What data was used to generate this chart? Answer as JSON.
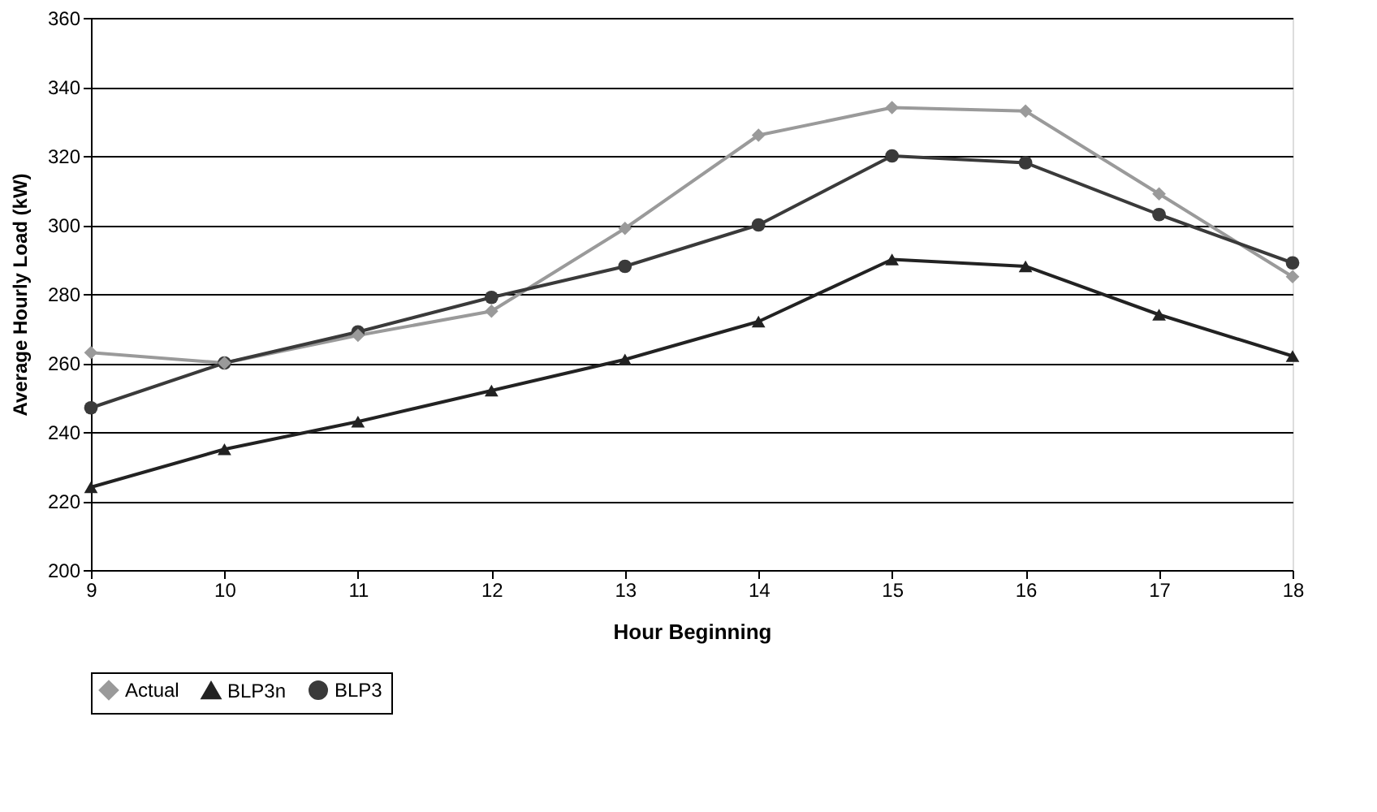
{
  "chart_data": {
    "type": "line",
    "xlabel": "Hour Beginning",
    "ylabel": "Average Hourly Load (kW)",
    "x": [
      9,
      10,
      11,
      12,
      13,
      14,
      15,
      16,
      17,
      18
    ],
    "series": [
      {
        "name": "Actual",
        "color": "#9a9a9a",
        "marker": "diamond",
        "values": [
          263,
          260,
          268,
          275,
          299,
          326,
          334,
          333,
          309,
          285
        ]
      },
      {
        "name": "BLP3n",
        "color": "#222222",
        "marker": "triangle",
        "values": [
          224,
          235,
          243,
          252,
          261,
          272,
          290,
          288,
          274,
          262
        ]
      },
      {
        "name": "BLP3",
        "color": "#3a3a3a",
        "marker": "circle",
        "values": [
          247,
          260,
          269,
          279,
          288,
          300,
          320,
          318,
          303,
          289
        ]
      }
    ],
    "xlim": [
      9,
      18
    ],
    "xticks": [
      9,
      10,
      11,
      12,
      13,
      14,
      15,
      16,
      17,
      18
    ],
    "ylim": [
      200,
      360
    ],
    "yticks": [
      200,
      220,
      240,
      260,
      280,
      300,
      320,
      340,
      360
    ],
    "grid": "y",
    "legend": "bottom",
    "line_style": "solid"
  }
}
